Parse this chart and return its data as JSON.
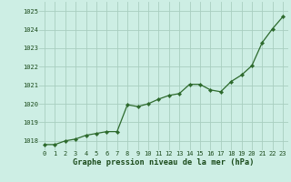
{
  "x": [
    0,
    1,
    2,
    3,
    4,
    5,
    6,
    7,
    8,
    9,
    10,
    11,
    12,
    13,
    14,
    15,
    16,
    17,
    18,
    19,
    20,
    21,
    22,
    23
  ],
  "y": [
    1017.8,
    1017.8,
    1018.0,
    1018.1,
    1018.3,
    1018.4,
    1018.5,
    1018.5,
    1019.95,
    1019.85,
    1020.0,
    1020.25,
    1020.45,
    1020.55,
    1021.05,
    1021.05,
    1020.75,
    1020.65,
    1021.2,
    1021.55,
    1022.05,
    1023.3,
    1024.05,
    1024.7
  ],
  "line_color": "#2d6a2d",
  "marker": "D",
  "marker_size": 2.2,
  "bg_color": "#cdeee4",
  "grid_color": "#a8cec0",
  "xlabel": "Graphe pression niveau de la mer (hPa)",
  "xlabel_color": "#1a4a1a",
  "tick_color": "#1a4a1a",
  "ylim": [
    1017.5,
    1025.5
  ],
  "xlim": [
    -0.5,
    23.5
  ],
  "yticks": [
    1018,
    1019,
    1020,
    1021,
    1022,
    1023,
    1024,
    1025
  ],
  "xticks": [
    0,
    1,
    2,
    3,
    4,
    5,
    6,
    7,
    8,
    9,
    10,
    11,
    12,
    13,
    14,
    15,
    16,
    17,
    18,
    19,
    20,
    21,
    22,
    23
  ],
  "tick_fontsize": 5.0,
  "xlabel_fontsize": 6.2,
  "linewidth": 0.9
}
